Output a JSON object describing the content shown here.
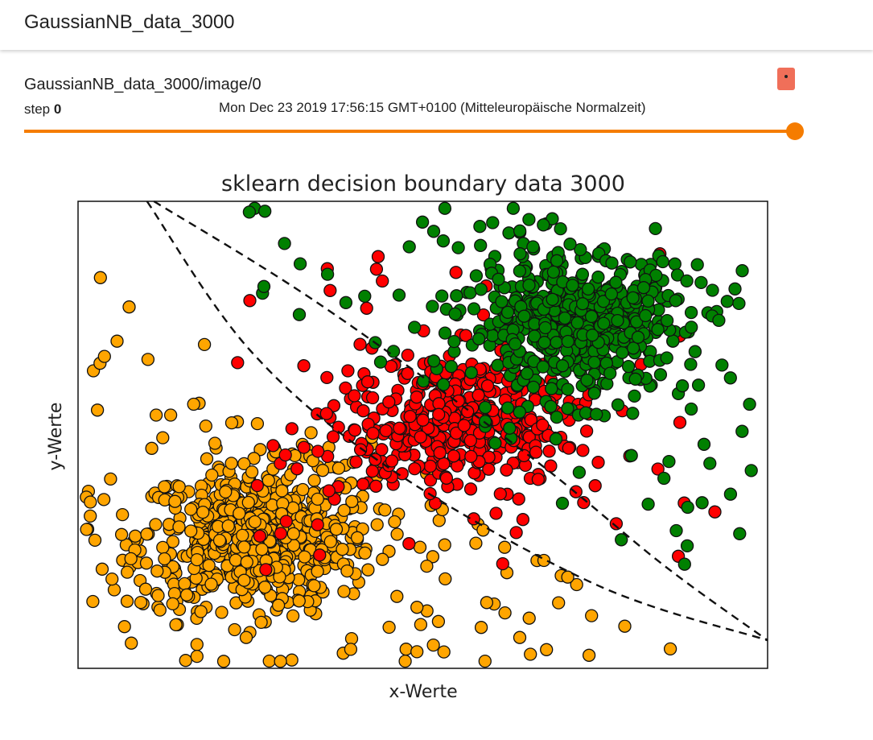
{
  "header": {
    "title": "GaussianNB_data_3000"
  },
  "card": {
    "tag": "GaussianNB_data_3000/image/0",
    "step_label": "step",
    "step_value": "0",
    "wall_time": "Mon Dec 23 2019 17:56:15 GMT+0100 (Mitteleuropäische Normalzeit)"
  },
  "colors": {
    "accent": "#f57c00",
    "menu": "#f06f59",
    "orange": "#ffa500",
    "red": "#ff0000",
    "green": "#008000"
  },
  "chart_data": {
    "type": "scatter",
    "title": "sklearn decision boundary data 3000",
    "xlabel": "x-Werte",
    "ylabel": "y-Werte",
    "xlim": [
      0,
      10
    ],
    "ylim": [
      0,
      10
    ],
    "ticks_shown": false,
    "grid": false,
    "series": [
      {
        "color": "#ffa500",
        "clusters": [
          {
            "cx": 2.6,
            "cy": 2.8,
            "sx": 0.85,
            "sy": 0.75,
            "n": 620
          }
        ],
        "scatter_region": {
          "x": [
            0.1,
            8.8
          ],
          "y": [
            0.1,
            9.9
          ],
          "n": 130,
          "max_sum": 9.4
        }
      },
      {
        "color": "#ff0000",
        "clusters": [
          {
            "cx": 5.5,
            "cy": 5.3,
            "sx": 0.85,
            "sy": 0.7,
            "n": 420
          }
        ],
        "scatter_region": {
          "x": [
            2.3,
            9.4
          ],
          "y": [
            2.0,
            8.9
          ],
          "n": 45
        }
      },
      {
        "color": "#008000",
        "clusters": [
          {
            "cx": 7.2,
            "cy": 7.4,
            "sx": 0.8,
            "sy": 0.75,
            "n": 520
          }
        ],
        "scatter_region": {
          "x": [
            2.3,
            9.9
          ],
          "y": [
            2.0,
            9.9
          ],
          "n": 90,
          "min_sum": 10.5
        }
      }
    ],
    "decision_boundaries": [
      {
        "style": "dashed",
        "points": [
          [
            1.1,
            10.0
          ],
          [
            3.5,
            7.8
          ],
          [
            6.5,
            4.6
          ],
          [
            8.5,
            2.2
          ],
          [
            10.0,
            0.6
          ]
        ]
      },
      {
        "style": "dashed",
        "points": [
          [
            1.0,
            10.0
          ],
          [
            2.5,
            6.8
          ],
          [
            4.5,
            4.3
          ],
          [
            7.5,
            1.8
          ],
          [
            10.0,
            0.6
          ]
        ]
      }
    ]
  }
}
